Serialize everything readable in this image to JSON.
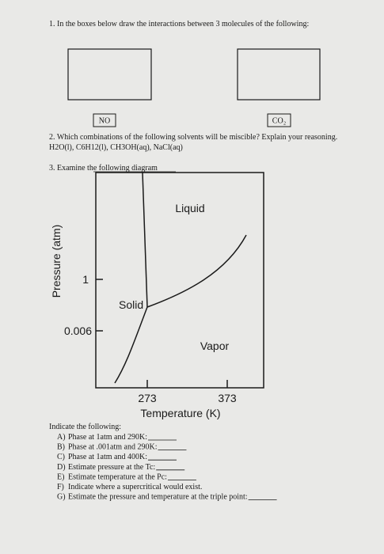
{
  "question1": {
    "text": "1. In the boxes below draw the interactions between 3 molecules of the following:",
    "boxes": [
      "NO",
      "CO₂"
    ]
  },
  "question2": {
    "text": "2. Which combinations of the following solvents will be miscible? Explain your reasoning.",
    "solvents": "H2O(l), C6H12(l), CH3OH(aq), NaCl(aq)"
  },
  "question3": {
    "text": "3. Examine the following diagram",
    "diagram": {
      "regions": [
        "Liquid",
        "Solid",
        "Vapor"
      ],
      "y_label": "Pressure (atm)",
      "y_ticks": [
        1,
        0.006
      ],
      "x_ticks": [
        273,
        373
      ],
      "x_label": "Temperature (K)"
    },
    "instruction": "Indicate the following:",
    "items": [
      {
        "letter": "A)",
        "text": "Phase at 1atm and 290K:"
      },
      {
        "letter": "B)",
        "text": "Phase at .001atm and 290K:"
      },
      {
        "letter": "C)",
        "text": "Phase at 1atm and 400K:"
      },
      {
        "letter": "D)",
        "text": "Estimate pressure at the Tc:"
      },
      {
        "letter": "E)",
        "text": "Estimate temperature at the Pc:"
      },
      {
        "letter": "F)",
        "text": "Indicate where a supercritical would exist."
      },
      {
        "letter": "G)",
        "text": "Estimate the pressure and temperature at the triple point:"
      }
    ]
  }
}
